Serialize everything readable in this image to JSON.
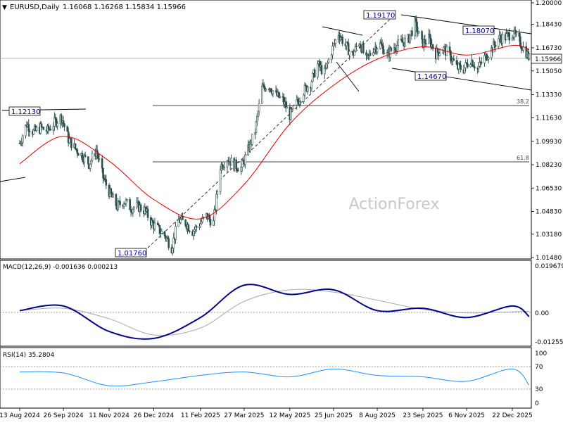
{
  "header": {
    "symbol": "EURUSD,Daily",
    "ohlc": "1.16068 1.16268 1.15834 1.15966"
  },
  "watermark": "ActionForex",
  "colors": {
    "bars": "#2f4f4f",
    "ema": "#e00000",
    "macd_main": "#00008b",
    "macd_signal": "#a9a9a9",
    "rsi": "#1e90ff",
    "trendline": "#000000",
    "current_price_bg": "#ffffff"
  },
  "labels": {
    "low_2025_01": "1.01760",
    "high_2024_09": "1.12130",
    "high_2025_07": "1.19170",
    "low_2025_10": "1.14670",
    "high_2025_12": "1.18070",
    "fib_38": "38.2",
    "fib_61": "61.8",
    "current_price": "1.15966"
  },
  "macd": {
    "title": "MACD(12,26,9) -0.001636 0.000213",
    "ticks": [
      "0.019679",
      "0.00",
      "-0.012552"
    ]
  },
  "rsi": {
    "title": "RSI(14) 35.2804",
    "ticks": [
      "100",
      "70",
      "30",
      "0"
    ]
  },
  "chart_data": {
    "type": "candlestick",
    "symbol": "EURUSD",
    "timeframe": "Daily",
    "price_axis_ticks": [
      "1.20000",
      "1.18430",
      "1.16730",
      "1.15050",
      "1.13330",
      "1.11630",
      "1.09930",
      "1.08230",
      "1.06530",
      "1.04830",
      "1.03180",
      "1.01480"
    ],
    "x_axis_labels": [
      "13 Aug 2024",
      "26 Sep 2024",
      "11 Nov 2024",
      "26 Dec 2024",
      "11 Feb 2025",
      "27 Mar 2025",
      "12 May 2025",
      "25 Jun 2025",
      "8 Aug 2025",
      "23 Sep 2025",
      "6 Nov 2025",
      "22 Dec 2025"
    ],
    "ylim": [
      1.0148,
      1.2
    ],
    "close_path": [
      [
        "13 Aug 2024",
        1.098
      ],
      [
        "20 Aug 2024",
        1.112
      ],
      [
        "27 Aug 2024",
        1.106
      ],
      [
        "3 Sep 2024",
        1.109
      ],
      [
        "10 Sep 2024",
        1.107
      ],
      [
        "17 Sep 2024",
        1.113
      ],
      [
        "24 Sep 2024",
        1.117
      ],
      [
        "1 Oct 2024",
        1.101
      ],
      [
        "8 Oct 2024",
        1.094
      ],
      [
        "15 Oct 2024",
        1.089
      ],
      [
        "22 Oct 2024",
        1.083
      ],
      [
        "29 Oct 2024",
        1.093
      ],
      [
        "5 Nov 2024",
        1.073
      ],
      [
        "12 Nov 2024",
        1.061
      ],
      [
        "19 Nov 2024",
        1.052
      ],
      [
        "26 Nov 2024",
        1.056
      ],
      [
        "3 Dec 2024",
        1.051
      ],
      [
        "10 Dec 2024",
        1.052
      ],
      [
        "17 Dec 2024",
        1.049
      ],
      [
        "24 Dec 2024",
        1.04
      ],
      [
        "31 Dec 2024",
        1.035
      ],
      [
        "7 Jan 2025",
        1.03
      ],
      [
        "13 Jan 2025",
        1.022
      ],
      [
        "20 Jan 2025",
        1.042
      ],
      [
        "27 Jan 2025",
        1.04
      ],
      [
        "3 Feb 2025",
        1.034
      ],
      [
        "10 Feb 2025",
        1.039
      ],
      [
        "17 Feb 2025",
        1.045
      ],
      [
        "24 Feb 2025",
        1.04
      ],
      [
        "3 Mar 2025",
        1.081
      ],
      [
        "10 Mar 2025",
        1.087
      ],
      [
        "17 Mar 2025",
        1.082
      ],
      [
        "24 Mar 2025",
        1.08
      ],
      [
        "31 Mar 2025",
        1.093
      ],
      [
        "7 Apr 2025",
        1.107
      ],
      [
        "14 Apr 2025",
        1.138
      ],
      [
        "21 Apr 2025",
        1.14
      ],
      [
        "28 Apr 2025",
        1.133
      ],
      [
        "5 May 2025",
        1.129
      ],
      [
        "12 May 2025",
        1.118
      ],
      [
        "19 May 2025",
        1.127
      ],
      [
        "26 May 2025",
        1.136
      ],
      [
        "2 Jun 2025",
        1.142
      ],
      [
        "9 Jun 2025",
        1.155
      ],
      [
        "16 Jun 2025",
        1.149
      ],
      [
        "23 Jun 2025",
        1.165
      ],
      [
        "30 Jun 2025",
        1.178
      ],
      [
        "7 Jul 2025",
        1.169
      ],
      [
        "14 Jul 2025",
        1.162
      ],
      [
        "21 Jul 2025",
        1.172
      ],
      [
        "28 Jul 2025",
        1.158
      ],
      [
        "4 Aug 2025",
        1.167
      ],
      [
        "11 Aug 2025",
        1.17
      ],
      [
        "18 Aug 2025",
        1.162
      ],
      [
        "25 Aug 2025",
        1.168
      ],
      [
        "1 Sep 2025",
        1.171
      ],
      [
        "8 Sep 2025",
        1.173
      ],
      [
        "15 Sep 2025",
        1.185
      ],
      [
        "22 Sep 2025",
        1.17
      ],
      [
        "29 Sep 2025",
        1.174
      ],
      [
        "6 Oct 2025",
        1.163
      ],
      [
        "13 Oct 2025",
        1.167
      ],
      [
        "20 Oct 2025",
        1.162
      ],
      [
        "27 Oct 2025",
        1.153
      ],
      [
        "3 Nov 2025",
        1.152
      ],
      [
        "10 Nov 2025",
        1.159
      ],
      [
        "17 Nov 2025",
        1.152
      ],
      [
        "24 Nov 2025",
        1.16
      ],
      [
        "1 Dec 2025",
        1.166
      ],
      [
        "8 Dec 2025",
        1.174
      ],
      [
        "15 Dec 2025",
        1.175
      ],
      [
        "22 Dec 2025",
        1.178
      ],
      [
        "29 Dec 2025",
        1.172
      ],
      [
        "5 Jan 2026",
        1.164
      ],
      [
        "8 Jan 2026",
        1.15966
      ]
    ],
    "ema_path": [
      [
        "13 Aug 2024",
        1.083
      ],
      [
        "26 Sep 2024",
        1.103
      ],
      [
        "11 Nov 2024",
        1.085
      ],
      [
        "26 Dec 2024",
        1.057
      ],
      [
        "11 Feb 2025",
        1.043
      ],
      [
        "27 Mar 2025",
        1.068
      ],
      [
        "12 May 2025",
        1.112
      ],
      [
        "25 Jun 2025",
        1.14
      ],
      [
        "8 Aug 2025",
        1.159
      ],
      [
        "23 Sep 2025",
        1.168
      ],
      [
        "6 Nov 2025",
        1.162
      ],
      [
        "22 Dec 2025",
        1.169
      ],
      [
        "8 Jan 2026",
        1.166
      ]
    ],
    "macd_path": [
      [
        "13 Aug 2024",
        0.001
      ],
      [
        "26 Sep 2024",
        0.003
      ],
      [
        "11 Nov 2024",
        -0.008
      ],
      [
        "26 Dec 2024",
        -0.011
      ],
      [
        "11 Feb 2025",
        -0.002
      ],
      [
        "27 Mar 2025",
        0.012
      ],
      [
        "12 May 2025",
        0.008
      ],
      [
        "25 Jun 2025",
        0.01
      ],
      [
        "8 Aug 2025",
        0.001
      ],
      [
        "23 Sep 2025",
        0.002
      ],
      [
        "6 Nov 2025",
        -0.002
      ],
      [
        "22 Dec 2025",
        0.003
      ],
      [
        "8 Jan 2026",
        -0.0016
      ]
    ],
    "rsi_path": [
      [
        "13 Aug 2024",
        62
      ],
      [
        "26 Sep 2024",
        60
      ],
      [
        "11 Nov 2024",
        34
      ],
      [
        "26 Dec 2024",
        42
      ],
      [
        "11 Feb 2025",
        55
      ],
      [
        "27 Mar 2025",
        62
      ],
      [
        "12 May 2025",
        52
      ],
      [
        "25 Jun 2025",
        68
      ],
      [
        "8 Aug 2025",
        55
      ],
      [
        "23 Sep 2025",
        52
      ],
      [
        "6 Nov 2025",
        43
      ],
      [
        "22 Dec 2025",
        68
      ],
      [
        "8 Jan 2026",
        35
      ]
    ],
    "annotations": [
      {
        "type": "fib",
        "level": "38.2",
        "price": 1.1245
      },
      {
        "type": "fib",
        "level": "61.8",
        "price": 1.0838
      }
    ]
  }
}
